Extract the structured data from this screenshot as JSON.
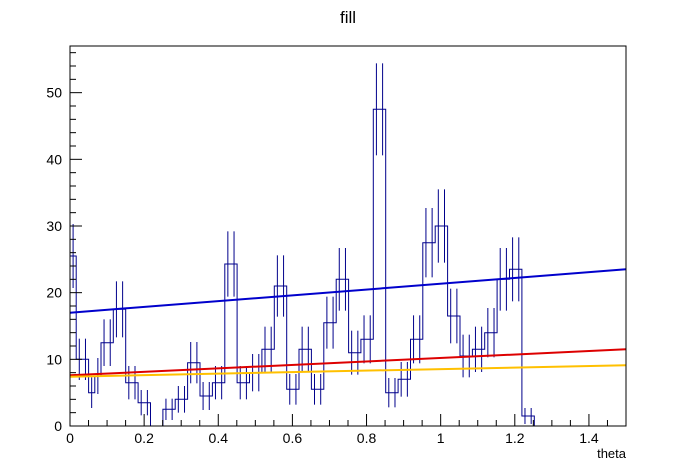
{
  "chart_data": {
    "type": "histogram",
    "title": "fill",
    "xlabel": "theta",
    "ylabel": "",
    "xlim": [
      0,
      1.5
    ],
    "ylim": [
      0,
      57
    ],
    "x_ticks": [
      0,
      0.2,
      0.4,
      0.6,
      0.8,
      1,
      1.2,
      1.4
    ],
    "x_tick_labels": [
      "0",
      "0.2",
      "0.4",
      "0.6",
      "0.8",
      "1",
      "1.2",
      "1.4"
    ],
    "y_ticks": [
      0,
      10,
      20,
      30,
      40,
      50
    ],
    "y_tick_labels": [
      "0",
      "10",
      "20",
      "30",
      "40",
      "50"
    ],
    "grid": false,
    "histogram": {
      "name": "theta",
      "color": "#00008b",
      "bin_width": 0.0167,
      "x_start": 0,
      "counts": [
        25.5,
        10,
        10,
        5,
        7.5,
        12.5,
        12.5,
        17.5,
        17.5,
        6.5,
        6.5,
        3.5,
        3.5,
        0,
        0,
        2.5,
        2.5,
        4,
        4,
        9.5,
        9.5,
        4.5,
        4.5,
        6.5,
        6.5,
        24.3,
        24.3,
        6.5,
        6.5,
        8,
        8,
        11.5,
        11.5,
        21,
        21,
        5.5,
        5.5,
        11.5,
        11.5,
        5.5,
        5.5,
        15.5,
        15.5,
        22,
        22,
        11,
        11,
        13,
        13,
        47.5,
        47.5,
        5,
        5,
        7,
        7,
        13,
        13,
        27.5,
        27.5,
        30,
        30,
        16.5,
        16.5,
        10.5,
        10.5,
        11.5,
        11.5,
        14,
        14,
        22,
        22,
        23.5,
        23.5,
        1.5,
        1.5,
        0
      ],
      "errors": [
        4.8,
        3.1,
        3.1,
        2.3,
        2.7,
        3.5,
        3.5,
        4.2,
        4.2,
        2.5,
        2.5,
        1.9,
        1.9,
        0,
        0,
        1.6,
        1.6,
        2,
        2,
        3.1,
        3.1,
        2.1,
        2.1,
        2.5,
        2.5,
        4.9,
        4.9,
        2.5,
        2.5,
        2.8,
        2.8,
        3.4,
        3.4,
        4.6,
        4.6,
        2.3,
        2.3,
        3.4,
        3.4,
        2.3,
        2.3,
        3.9,
        3.9,
        4.7,
        4.7,
        3.3,
        3.3,
        3.6,
        3.6,
        6.9,
        6.9,
        2.2,
        2.2,
        2.6,
        2.6,
        3.6,
        3.6,
        5.2,
        5.2,
        5.5,
        5.5,
        4.1,
        4.1,
        3.2,
        3.2,
        3.4,
        3.4,
        3.7,
        3.7,
        4.7,
        4.7,
        4.8,
        4.8,
        1.2,
        1.2,
        0
      ]
    },
    "series": [
      {
        "type": "line",
        "color": "#0000cc",
        "x": [
          0,
          1.5
        ],
        "y": [
          17.0,
          23.5
        ]
      },
      {
        "type": "line",
        "color": "#dd0000",
        "x": [
          0,
          1.5
        ],
        "y": [
          7.6,
          11.5
        ]
      },
      {
        "type": "line",
        "color": "#ffc000",
        "x": [
          0,
          1.5
        ],
        "y": [
          7.4,
          9.1
        ]
      }
    ]
  }
}
